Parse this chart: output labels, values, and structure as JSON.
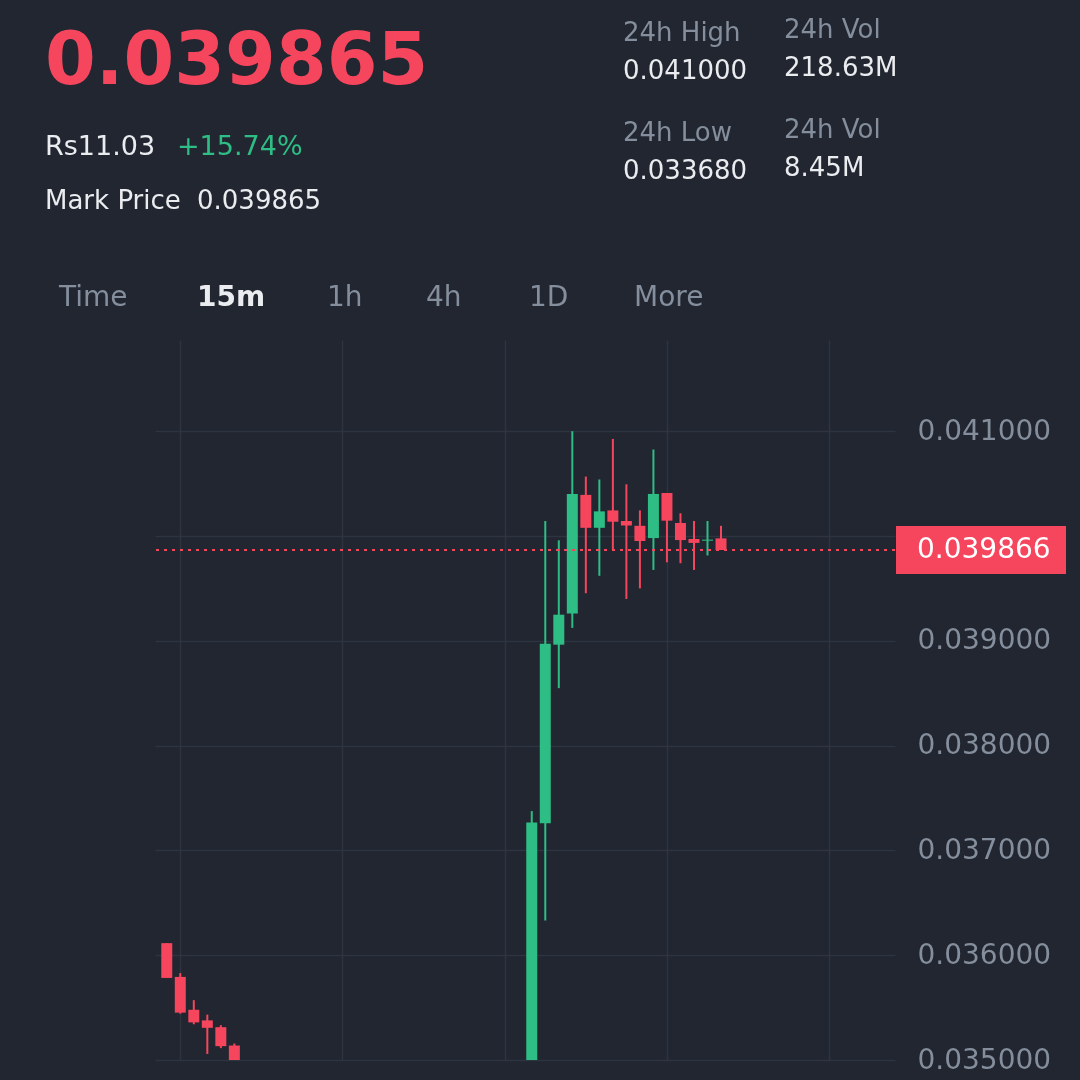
{
  "chart_data": {
    "type": "candlestick",
    "title": "0.039865",
    "annotations": [
      "Rs11.03",
      "+15.74%",
      "Mark Price",
      "0.039865",
      "24h High",
      "0.041000",
      "24h Low",
      "0.033680",
      "24h Vol",
      "218.63M",
      "24h Vol",
      "8.45M",
      "Time",
      "15m",
      "1h",
      "4h",
      "1D",
      "More"
    ],
    "categories": [
      null,
      null,
      null,
      null,
      null,
      null,
      null,
      null,
      null,
      null,
      null,
      null,
      null,
      null,
      null,
      null,
      null,
      null,
      null,
      null,
      null,
      null,
      null,
      null,
      null,
      null,
      null,
      null,
      null,
      null,
      null,
      null,
      null,
      null,
      null,
      null,
      null,
      null,
      null,
      null,
      null,
      null,
      null,
      null,
      null,
      null,
      null,
      null,
      null,
      null,
      null,
      null,
      null,
      null
    ],
    "ohlc": [
      [
        0.036115,
        0.036115,
        0.035783,
        0.035783
      ],
      [
        0.035793,
        0.035829,
        0.035442,
        0.035452
      ],
      [
        0.035479,
        0.035571,
        0.035341,
        0.035359
      ],
      [
        0.035378,
        0.035433,
        0.035058,
        0.035307
      ],
      [
        0.035313,
        0.035332,
        0.035113,
        0.035132
      ],
      [
        0.035138,
        0.035157,
        0.035,
        0.035
      ],
      null,
      null,
      null,
      null,
      null,
      null,
      null,
      null,
      null,
      null,
      null,
      null,
      null,
      null,
      null,
      null,
      null,
      null,
      null,
      null,
      null,
      [
        0.035,
        0.037375,
        0.035,
        0.037267
      ],
      [
        0.037258,
        0.040143,
        0.03633,
        0.038972
      ],
      [
        0.038963,
        0.039959,
        0.038548,
        0.039249
      ],
      [
        0.039261,
        0.041,
        0.039123,
        0.040401
      ],
      [
        0.040392,
        0.040567,
        0.039454,
        0.040078
      ],
      [
        0.040078,
        0.040539,
        0.03962,
        0.040235
      ],
      [
        0.040244,
        0.040926,
        0.039864,
        0.040136
      ],
      [
        0.040143,
        0.040493,
        0.039399,
        0.0401
      ],
      [
        0.040097,
        0.040244,
        0.0395,
        0.039952
      ],
      [
        0.03998,
        0.040825,
        0.039676,
        0.040401
      ],
      [
        0.04041,
        0.04041,
        0.039749,
        0.040146
      ],
      [
        0.040124,
        0.040217,
        0.03974,
        0.039961
      ],
      [
        0.039971,
        0.040143,
        0.039676,
        0.039934
      ],
      [
        0.039955,
        0.040143,
        0.039814,
        0.039965
      ],
      [
        0.039977,
        0.040097,
        0.039866,
        0.039866
      ],
      null,
      null,
      null,
      null,
      null,
      null,
      null,
      null,
      null,
      null,
      null,
      null
    ],
    "colors": [
      "#f6465d",
      "#f6465d",
      "#f6465d",
      "#f6465d",
      "#f6465d",
      "#f6465d",
      null,
      null,
      null,
      null,
      null,
      null,
      null,
      null,
      null,
      null,
      null,
      null,
      null,
      null,
      null,
      null,
      null,
      null,
      null,
      null,
      null,
      "#2ebd85",
      "#2ebd85",
      "#2ebd85",
      "#2ebd85",
      "#f6465d",
      "#2ebd85",
      "#f6465d",
      "#f6465d",
      "#f6465d",
      "#2ebd85",
      "#f6465d",
      "#f6465d",
      "#f6465d",
      "#2ebd85",
      "#f6465d",
      null,
      null,
      null,
      null,
      null,
      null,
      null,
      null,
      null,
      null,
      null,
      null
    ],
    "ylim": [
      0.035,
      0.04187
    ],
    "yticks": [
      {
        "value": 0.035,
        "label": "0.035000"
      },
      {
        "value": 0.036,
        "label": "0.036000"
      },
      {
        "value": 0.037,
        "label": "0.037000"
      },
      {
        "value": 0.038,
        "label": "0.038000"
      },
      {
        "value": 0.039,
        "label": "0.039000"
      },
      {
        "value": 0.04,
        "label": null
      },
      {
        "value": 0.041,
        "label": "0.041000"
      }
    ],
    "grid": true,
    "tick_labels": "y",
    "ref_lines": [
      {
        "axis": "y",
        "value": 0.039866,
        "label": "0.039866",
        "color": "#f6465d",
        "line_style": "dotted"
      }
    ]
  }
}
